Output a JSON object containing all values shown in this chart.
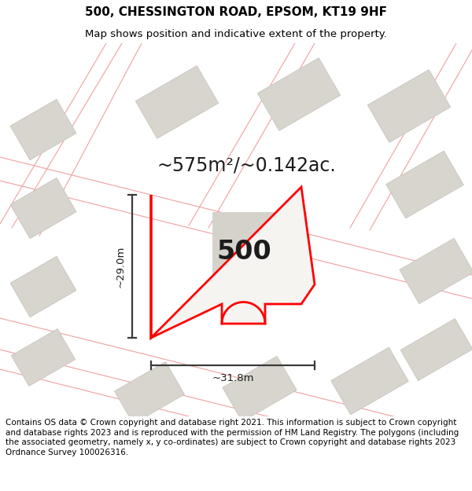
{
  "title": "500, CHESSINGTON ROAD, EPSOM, KT19 9HF",
  "subtitle": "Map shows position and indicative extent of the property.",
  "area_text": "~575m²/~0.142ac.",
  "label_500": "500",
  "dim_height": "~29.0m",
  "dim_width": "~31.8m",
  "footer": "Contains OS data © Crown copyright and database right 2021. This information is subject to Crown copyright and database rights 2023 and is reproduced with the permission of HM Land Registry. The polygons (including the associated geometry, namely x, y co-ordinates) are subject to Crown copyright and database rights 2023 Ordnance Survey 100026316.",
  "map_bg": "#f0eeeb",
  "plot_fill": "#f5f4f1",
  "plot_edge": "#ff0000",
  "building_fill": "#d8d5cf",
  "building_edge": "#c8c5bf",
  "road_color": "#f0a0a0",
  "dim_color": "#3a3a3a",
  "white": "#ffffff",
  "title_fontsize": 11,
  "subtitle_fontsize": 9.5,
  "area_fontsize": 17,
  "label_fontsize": 24,
  "dim_fontsize": 9.5,
  "footer_fontsize": 7.5
}
